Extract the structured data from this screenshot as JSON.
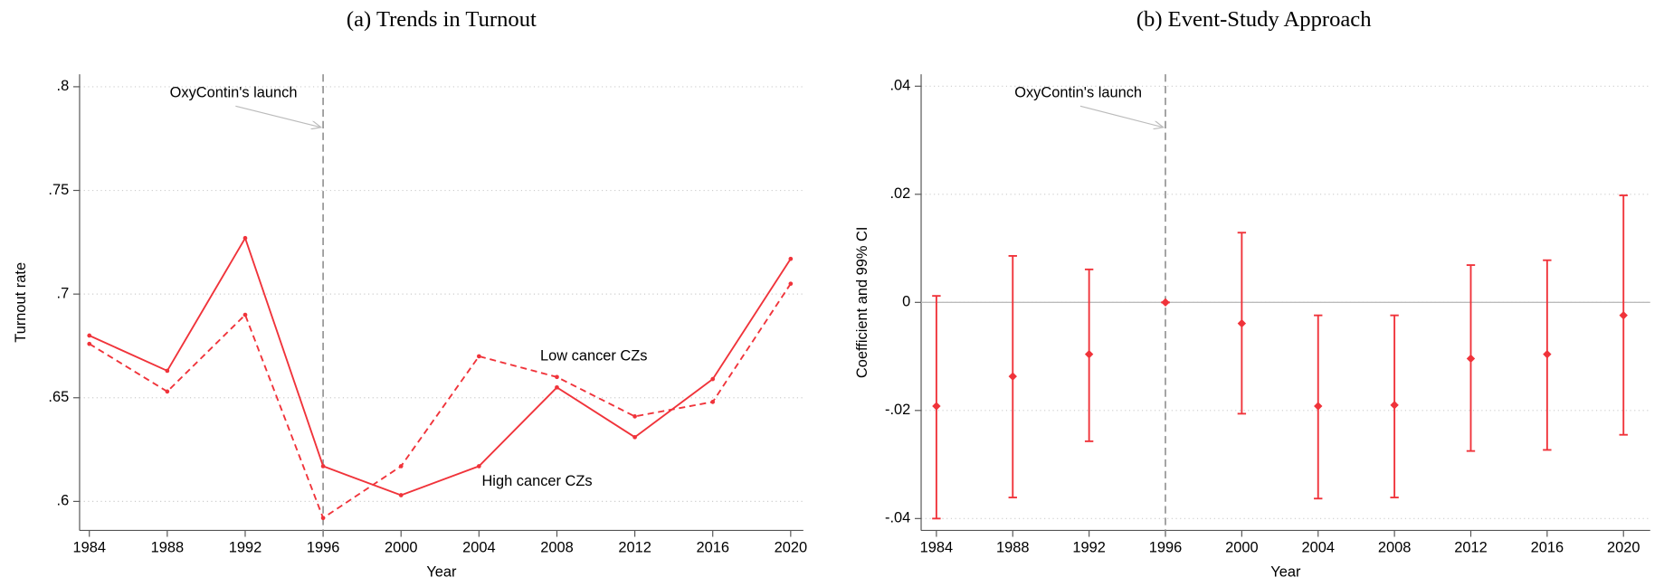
{
  "chart_data": [
    {
      "type": "line",
      "title": "(a) Trends in Turnout",
      "xlabel": "Year",
      "ylabel": "Turnout rate",
      "x": [
        1984,
        1988,
        1992,
        1996,
        2000,
        2004,
        2008,
        2012,
        2016,
        2020
      ],
      "series": [
        {
          "name": "High cancer CZs",
          "color": "#f0333a",
          "dash": false,
          "values": [
            0.68,
            0.663,
            0.727,
            0.617,
            0.603,
            0.617,
            0.655,
            0.631,
            0.659,
            0.717
          ]
        },
        {
          "name": "Low cancer  CZs",
          "color": "#f0333a",
          "dash": true,
          "values": [
            0.676,
            0.653,
            0.69,
            0.592,
            0.617,
            0.67,
            0.66,
            0.641,
            0.648,
            0.705
          ]
        }
      ],
      "xlim": [
        1983.5,
        2020.65
      ],
      "ylim": [
        0.586,
        0.806
      ],
      "xticks": [
        1984,
        1988,
        1992,
        1996,
        2000,
        2004,
        2008,
        2012,
        2016,
        2020
      ],
      "yticks": [
        {
          "value": 0.6,
          "label": ".6"
        },
        {
          "value": 0.65,
          "label": ".65"
        },
        {
          "value": 0.7,
          "label": ".7"
        },
        {
          "value": 0.75,
          "label": ".75"
        },
        {
          "value": 0.8,
          "label": ".8"
        }
      ],
      "grid": true,
      "vline": 1996,
      "annotation": "OxyContin's launch"
    },
    {
      "type": "errorbar",
      "title": "(b) Event-Study Approach",
      "xlabel": "Year",
      "ylabel": "Coefficient and 99% CI",
      "x": [
        1984,
        1988,
        1992,
        1996,
        2000,
        2004,
        2008,
        2012,
        2016,
        2020
      ],
      "color": "#f0333a",
      "values": [
        -0.0192,
        -0.0137,
        -0.0096,
        0,
        -0.0039,
        -0.0192,
        -0.019,
        -0.0104,
        -0.0096,
        -0.0024
      ],
      "lower": [
        -0.04,
        -0.0361,
        -0.0257,
        0,
        -0.0206,
        -0.0363,
        -0.0361,
        -0.0275,
        -0.0273,
        -0.0245
      ],
      "upper": [
        0.0012,
        0.0086,
        0.0061,
        0,
        0.0129,
        -0.0024,
        -0.0024,
        0.0069,
        0.0078,
        0.0198
      ],
      "xlim": [
        1983.2,
        2021.4
      ],
      "ylim": [
        -0.0422,
        0.0422
      ],
      "xticks": [
        1984,
        1988,
        1992,
        1996,
        2000,
        2004,
        2008,
        2012,
        2016,
        2020
      ],
      "yticks": [
        {
          "value": -0.04,
          "label": "-.04"
        },
        {
          "value": -0.02,
          "label": "-.02"
        },
        0,
        {
          "value": 0.02,
          "label": ".02"
        },
        {
          "value": 0.04,
          "label": ".04"
        }
      ],
      "grid": true,
      "vline": 1996,
      "hline": 0,
      "annotation": "OxyContin's launch"
    }
  ]
}
